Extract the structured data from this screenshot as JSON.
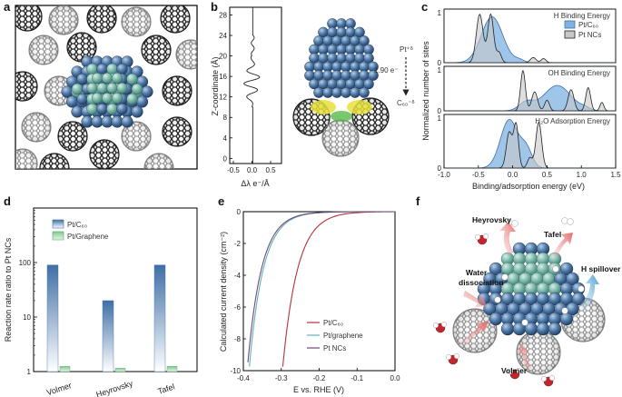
{
  "panels": {
    "a": "a",
    "b": "b",
    "c": "c",
    "d": "d",
    "e": "e",
    "f": "f"
  },
  "panel_b": {
    "ylabel": "Z-coordinate (Å)",
    "xlabel": "Δλ e⁻/Å",
    "yticks": [
      "28",
      "24",
      "20",
      "16",
      "12",
      "8",
      "4",
      "0"
    ],
    "xticks": [
      "-0.5",
      "0.0",
      "0.5"
    ],
    "annot_pt": "Pt⁺ᵟ",
    "annot_e": "1.90 e⁻",
    "annot_c60": "C₆₀⁻ᵟ"
  },
  "panel_c": {
    "ylabel": "Normalized number of sites",
    "xlabel": "Binding/adsorption energy (eV)",
    "titles": [
      "H Binding Energy",
      "OH Binding Energy",
      "H₂O Adsorption Energy"
    ],
    "legend": [
      "Pt/C₆₀",
      "Pt NCs"
    ],
    "xticks": [
      "-1.0",
      "-0.5",
      "0.0",
      "0.5",
      "1.0",
      "1.5"
    ],
    "yticks": [
      "0",
      "1"
    ]
  },
  "panel_d": {
    "ylabel": "Reaction rate ratio to Pt NCs",
    "yticks": [
      "1",
      "10",
      "100"
    ],
    "legend": [
      "Pt/C₆₀",
      "Pt/Graphene"
    ]
  },
  "panel_e": {
    "ylabel": "Calculated current density (cm⁻²)",
    "xlabel": "E vs. RHE (V)",
    "xticks": [
      "-0.4",
      "-0.3",
      "-0.2",
      "-0.1",
      "0.0"
    ],
    "yticks": [
      "0",
      "-2",
      "-4",
      "-6",
      "-8",
      "-10"
    ],
    "legend": [
      "Pt/C₆₀",
      "Pt/graphene",
      "Pt NCs"
    ]
  },
  "panel_f": {
    "labels": [
      "Heyrovsky",
      "Tafel",
      "Water dissociation",
      "H spillover",
      "Volmer"
    ]
  },
  "colors": {
    "pt_c60": "#3f6fa6",
    "pt_nc": "#8c8c8c",
    "graphene": "#7fc98f",
    "red_curve": "#b8323a",
    "teal_curve": "#5fb3b0",
    "purple_curve": "#6d4a7a"
  },
  "chart_data": [
    {
      "type": "bar",
      "panel": "d",
      "categories": [
        "Volmer",
        "Heyrovsky",
        "Tafel"
      ],
      "series": [
        {
          "name": "Pt/C₆₀",
          "values": [
            90,
            20,
            90
          ]
        },
        {
          "name": "Pt/Graphene",
          "values": [
            1.25,
            1.15,
            1.25
          ]
        }
      ],
      "ylabel": "Reaction rate ratio to Pt NCs",
      "ylim": [
        1,
        1000
      ],
      "yscale": "log"
    },
    {
      "type": "line",
      "panel": "e",
      "xlabel": "E vs. RHE (V)",
      "ylabel": "Calculated current density (cm⁻²)",
      "xlim": [
        -0.4,
        0.0
      ],
      "ylim": [
        -10,
        0
      ],
      "series": [
        {
          "name": "Pt/C₆₀",
          "onset": -0.1,
          "x_at_min": -0.297
        },
        {
          "name": "Pt/graphene",
          "onset": -0.2,
          "x_at_min": -0.385
        },
        {
          "name": "Pt NCs",
          "onset": -0.205,
          "x_at_min": -0.39
        }
      ]
    },
    {
      "type": "area",
      "panel": "c",
      "xlim": [
        -1.0,
        1.5
      ],
      "subplots": [
        "H Binding Energy",
        "OH Binding Energy",
        "H₂O Adsorption Energy"
      ]
    }
  ]
}
